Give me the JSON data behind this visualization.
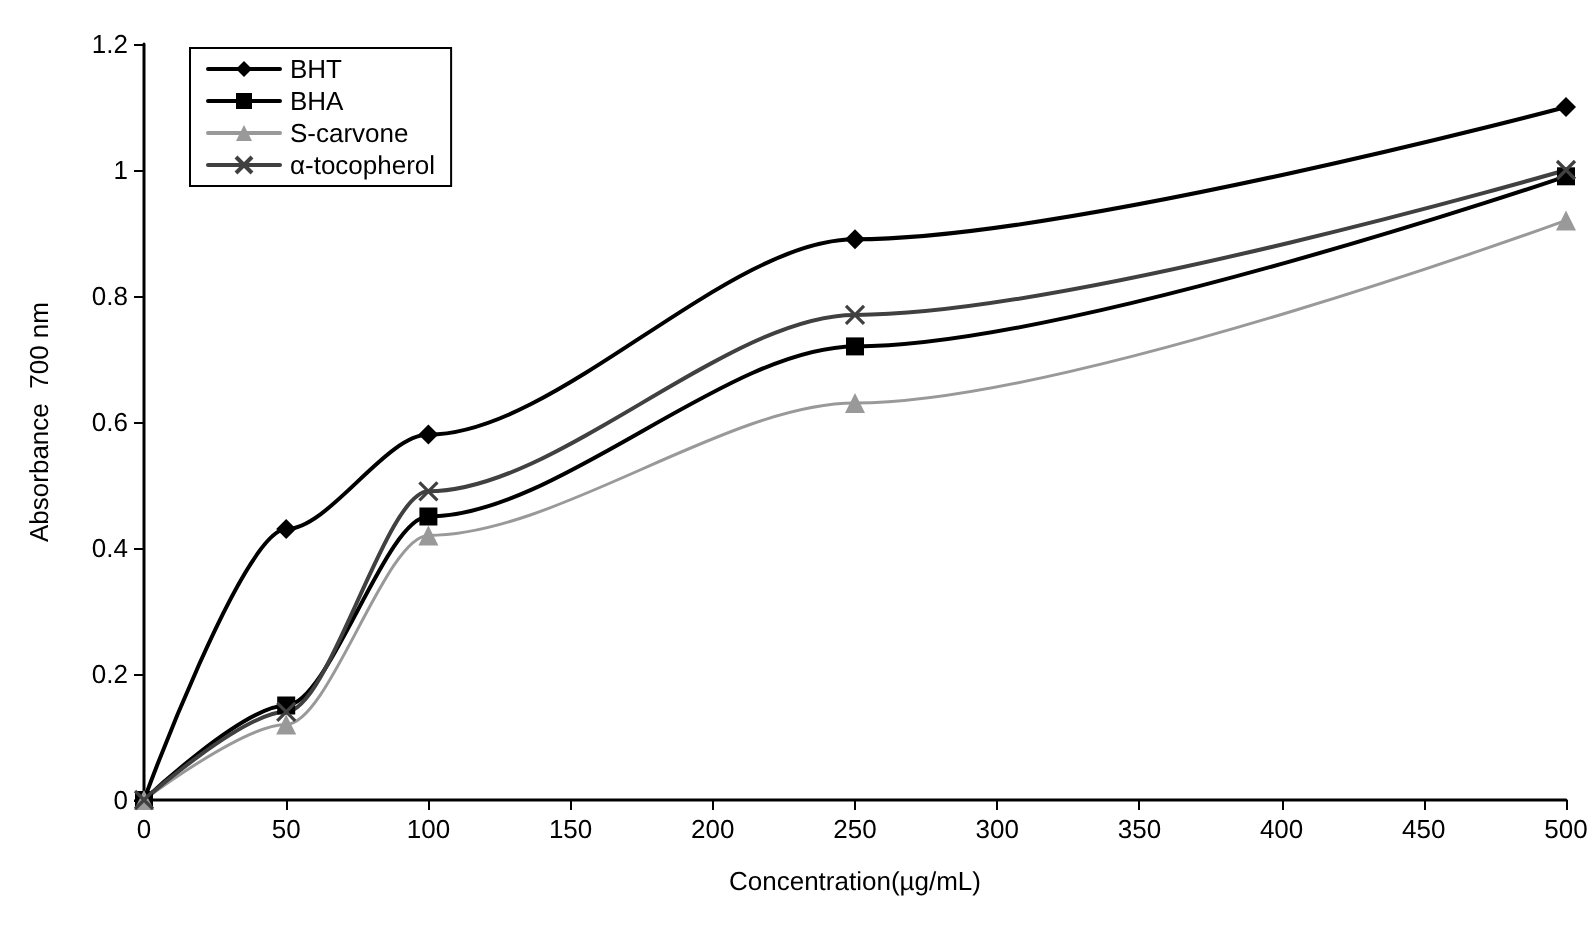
{
  "chart_data": {
    "type": "line",
    "xlabel": "Concentration(µg/mL)",
    "ylabel": "Absorbance  700 nm",
    "x": [
      0,
      50,
      100,
      250,
      500
    ],
    "series": [
      {
        "name": "BHT",
        "color": "#000000",
        "marker": "diamond",
        "values": [
          0,
          0.43,
          0.58,
          0.89,
          1.1
        ]
      },
      {
        "name": "BHA",
        "color": "#000000",
        "marker": "square",
        "values": [
          0,
          0.15,
          0.45,
          0.72,
          0.99
        ]
      },
      {
        "name": "S-carvone",
        "color": "#999999",
        "marker": "triangle",
        "values": [
          0,
          0.12,
          0.42,
          0.63,
          0.92
        ]
      },
      {
        "name": "α-tocopherol",
        "color": "#404040",
        "marker": "cross",
        "values": [
          0,
          0.14,
          0.49,
          0.77,
          1.0
        ]
      }
    ],
    "xlim": [
      0,
      500
    ],
    "xticks": [
      0,
      50,
      100,
      150,
      200,
      250,
      300,
      350,
      400,
      450,
      500
    ],
    "ylim": [
      0,
      1.2
    ],
    "yticks": [
      0,
      0.2,
      0.4,
      0.6,
      0.8,
      1,
      1.2
    ],
    "grid": false,
    "legend": "top left",
    "line_style": "solid"
  }
}
